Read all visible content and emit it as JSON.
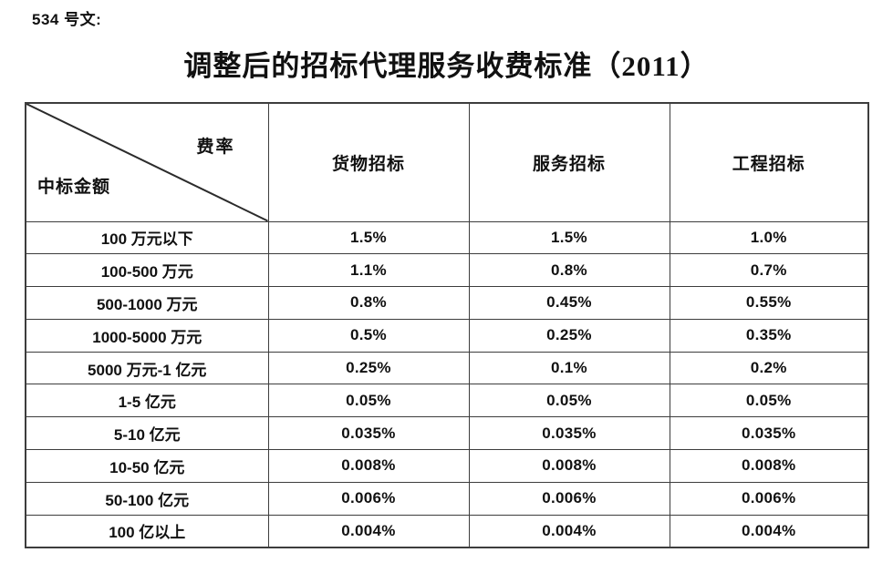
{
  "doc_label": "534 号文:",
  "title": "调整后的招标代理服务收费标准（2011）",
  "table": {
    "corner": {
      "top_right": "费率",
      "bottom_left": "中标金额"
    },
    "columns": [
      "货物招标",
      "服务招标",
      "工程招标"
    ],
    "rows": [
      {
        "range": "100 万元以下",
        "values": [
          "1.5%",
          "1.5%",
          "1.0%"
        ]
      },
      {
        "range": "100-500 万元",
        "values": [
          "1.1%",
          "0.8%",
          "0.7%"
        ]
      },
      {
        "range": "500-1000 万元",
        "values": [
          "0.8%",
          "0.45%",
          "0.55%"
        ]
      },
      {
        "range": "1000-5000 万元",
        "values": [
          "0.5%",
          "0.25%",
          "0.35%"
        ]
      },
      {
        "range": "5000 万元-1 亿元",
        "values": [
          "0.25%",
          "0.1%",
          "0.2%"
        ]
      },
      {
        "range": "1-5 亿元",
        "values": [
          "0.05%",
          "0.05%",
          "0.05%"
        ]
      },
      {
        "range": "5-10 亿元",
        "values": [
          "0.035%",
          "0.035%",
          "0.035%"
        ]
      },
      {
        "range": "10-50 亿元",
        "values": [
          "0.008%",
          "0.008%",
          "0.008%"
        ]
      },
      {
        "range": "50-100 亿元",
        "values": [
          "0.006%",
          "0.006%",
          "0.006%"
        ]
      },
      {
        "range": "100 亿以上",
        "values": [
          "0.004%",
          "0.004%",
          "0.004%"
        ]
      }
    ]
  },
  "colors": {
    "text": "#111111",
    "border": "#3d3d3d",
    "background": "#ffffff"
  }
}
